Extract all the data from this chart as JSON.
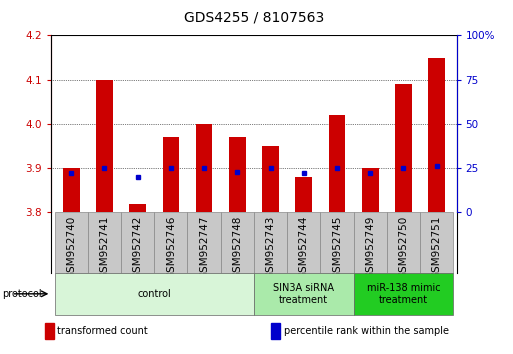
{
  "title": "GDS4255 / 8107563",
  "samples": [
    "GSM952740",
    "GSM952741",
    "GSM952742",
    "GSM952746",
    "GSM952747",
    "GSM952748",
    "GSM952743",
    "GSM952744",
    "GSM952745",
    "GSM952749",
    "GSM952750",
    "GSM952751"
  ],
  "bar_top": [
    3.9,
    4.1,
    3.82,
    3.97,
    4.0,
    3.97,
    3.95,
    3.88,
    4.02,
    3.9,
    4.09,
    4.15
  ],
  "bar_bottom": 3.8,
  "percentile": [
    22,
    25,
    20,
    25,
    25,
    23,
    25,
    22,
    25,
    22,
    25,
    26
  ],
  "ylim_left": [
    3.8,
    4.2
  ],
  "ylim_right": [
    0,
    100
  ],
  "yticks_left": [
    3.8,
    3.9,
    4.0,
    4.1,
    4.2
  ],
  "yticks_right": [
    0,
    25,
    50,
    75,
    100
  ],
  "bar_color": "#cc0000",
  "dot_color": "#0000cc",
  "protocol_groups": [
    {
      "label": "control",
      "start": 0,
      "end": 5,
      "color": "#d8f5d8"
    },
    {
      "label": "SIN3A siRNA\ntreatment",
      "start": 6,
      "end": 8,
      "color": "#aaeaaa"
    },
    {
      "label": "miR-138 mimic\ntreatment",
      "start": 9,
      "end": 11,
      "color": "#22cc22"
    }
  ],
  "legend_items": [
    {
      "label": "transformed count",
      "color": "#cc0000"
    },
    {
      "label": "percentile rank within the sample",
      "color": "#0000cc"
    }
  ],
  "grid_linestyle": "dotted",
  "title_fontsize": 10,
  "tick_fontsize": 7.5,
  "sample_box_color": "#c8c8c8",
  "sample_box_edge": "#888888"
}
